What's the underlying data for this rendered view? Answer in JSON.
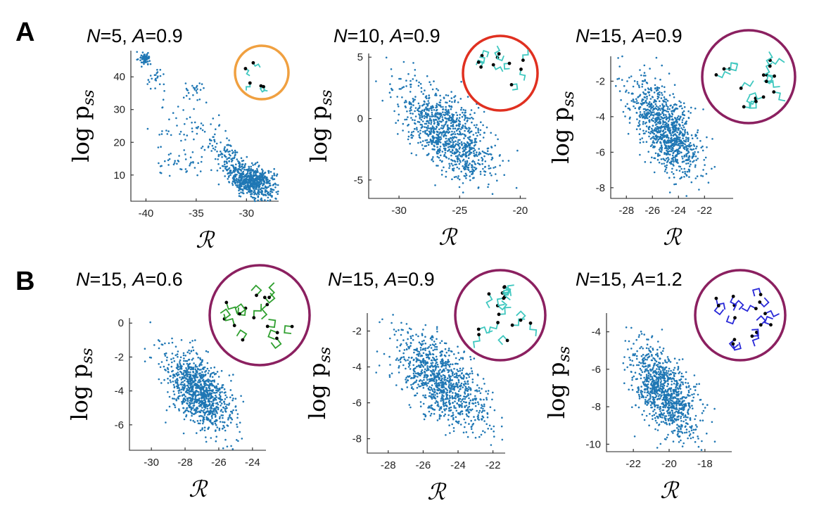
{
  "panel_labels": [
    "A",
    "B"
  ],
  "colors": {
    "points": "#1f77b4",
    "ring_orange": "#f0a040",
    "ring_red": "#e03020",
    "ring_purple": "#8b2060",
    "polymer_teal": "#40c8c0",
    "polymer_green": "#30a030",
    "polymer_blue": "#2828d8"
  },
  "chart_data": [
    {
      "type": "scatter",
      "panel": "A",
      "title_parts": [
        "N",
        "=5, ",
        "A",
        "=0.9"
      ],
      "xlabel": "ℛ",
      "ylabel": "log p",
      "ylabel_sub": "ss",
      "xlim": [
        -41.5,
        -26.8
      ],
      "ylim": [
        2,
        48
      ],
      "xticks": [
        -40,
        -35,
        -30
      ],
      "yticks": [
        10,
        20,
        30,
        40
      ],
      "inset": {
        "ring": "ring_orange",
        "polymer": "polymer_teal",
        "n": 5
      },
      "clusters": [
        {
          "cx": -29.3,
          "cy": 8,
          "sx": 1.2,
          "sy": 2.5,
          "n": 560,
          "rho": -0.3
        },
        {
          "cx": -31.5,
          "cy": 14,
          "sx": 1.0,
          "sy": 3.5,
          "n": 130,
          "rho": -0.5
        },
        {
          "cx": -34.0,
          "cy": 22,
          "sx": 1.4,
          "sy": 3.5,
          "n": 50,
          "rho": -0.4
        },
        {
          "cx": -36.5,
          "cy": 13,
          "sx": 1.3,
          "sy": 2.5,
          "n": 40,
          "rho": 0
        },
        {
          "cx": -35.2,
          "cy": 35.5,
          "sx": 0.5,
          "sy": 1.5,
          "n": 25,
          "rho": 0
        },
        {
          "cx": -40.1,
          "cy": 45.5,
          "sx": 0.25,
          "sy": 0.8,
          "n": 70,
          "rho": 0
        },
        {
          "cx": -39.0,
          "cy": 40,
          "sx": 0.5,
          "sy": 2.5,
          "n": 25,
          "rho": 0
        },
        {
          "cx": -37.5,
          "cy": 25,
          "sx": 1.2,
          "sy": 4,
          "n": 20,
          "rho": 0
        }
      ]
    },
    {
      "type": "scatter",
      "panel": "A",
      "title_parts": [
        "N",
        "=10, ",
        "A",
        "=0.9"
      ],
      "xlabel": "ℛ",
      "ylabel": "log p",
      "ylabel_sub": "ss",
      "xlim": [
        -32.5,
        -19.5
      ],
      "ylim": [
        -6.5,
        5.3
      ],
      "xticks": [
        -30,
        -25,
        -20
      ],
      "yticks": [
        -5,
        0,
        5
      ],
      "inset": {
        "ring": "ring_red",
        "polymer": "polymer_teal",
        "n": 10
      },
      "clusters": [
        {
          "cx": -26.0,
          "cy": -1.2,
          "sx": 1.9,
          "sy": 2.0,
          "n": 1000,
          "rho": -0.65
        }
      ]
    },
    {
      "type": "scatter",
      "panel": "A",
      "title_parts": [
        "N",
        "=15, ",
        "A",
        "=0.9"
      ],
      "xlabel": "ℛ",
      "ylabel": "log p",
      "ylabel_sub": "ss",
      "xlim": [
        -29.2,
        -19.8
      ],
      "ylim": [
        -8.6,
        -0.6
      ],
      "xticks": [
        -28,
        -26,
        -24,
        -22
      ],
      "yticks": [
        -8,
        -6,
        -4,
        -2
      ],
      "inset": {
        "ring": "ring_purple",
        "polymer": "polymer_teal",
        "n": 15
      },
      "clusters": [
        {
          "cx": -25.0,
          "cy": -4.7,
          "sx": 1.3,
          "sy": 1.3,
          "n": 1000,
          "rho": -0.6
        }
      ]
    },
    {
      "type": "scatter",
      "panel": "B",
      "title_parts": [
        "N",
        "=15, ",
        "A",
        "=0.6"
      ],
      "xlabel": "ℛ",
      "ylabel": "log p",
      "ylabel_sub": "ss",
      "xlim": [
        -31.3,
        -23.2
      ],
      "ylim": [
        -7.5,
        0.3
      ],
      "xticks": [
        -30,
        -28,
        -26,
        -24
      ],
      "yticks": [
        -6,
        -4,
        -2,
        0
      ],
      "inset": {
        "ring": "ring_purple",
        "polymer": "polymer_green",
        "n": 15
      },
      "clusters": [
        {
          "cx": -27.2,
          "cy": -4.0,
          "sx": 1.0,
          "sy": 1.2,
          "n": 1000,
          "rho": -0.55
        }
      ]
    },
    {
      "type": "scatter",
      "panel": "B",
      "title_parts": [
        "N",
        "=15, ",
        "A",
        "=0.9"
      ],
      "xlabel": "ℛ",
      "ylabel": "log p",
      "ylabel_sub": "ss",
      "xlim": [
        -29.2,
        -21.3
      ],
      "ylim": [
        -8.8,
        -1.0
      ],
      "xticks": [
        -28,
        -26,
        -24,
        -22
      ],
      "yticks": [
        -8,
        -6,
        -4,
        -2
      ],
      "inset": {
        "ring": "ring_purple",
        "polymer": "polymer_teal",
        "n": 15
      },
      "clusters": [
        {
          "cx": -25.0,
          "cy": -4.7,
          "sx": 1.3,
          "sy": 1.3,
          "n": 1000,
          "rho": -0.6
        }
      ]
    },
    {
      "type": "scatter",
      "panel": "B",
      "title_parts": [
        "N",
        "=15, ",
        "A",
        "=1.2"
      ],
      "xlabel": "ℛ",
      "ylabel": "log p",
      "ylabel_sub": "ss",
      "xlim": [
        -23.5,
        -16.5
      ],
      "ylim": [
        -10.4,
        -3.0
      ],
      "xticks": [
        -22,
        -20,
        -18
      ],
      "yticks": [
        -10,
        -8,
        -6,
        -4
      ],
      "inset": {
        "ring": "ring_purple",
        "polymer": "polymer_blue",
        "n": 15
      },
      "clusters": [
        {
          "cx": -20.3,
          "cy": -7.2,
          "sx": 0.9,
          "sy": 1.2,
          "n": 1000,
          "rho": -0.55
        }
      ]
    }
  ]
}
